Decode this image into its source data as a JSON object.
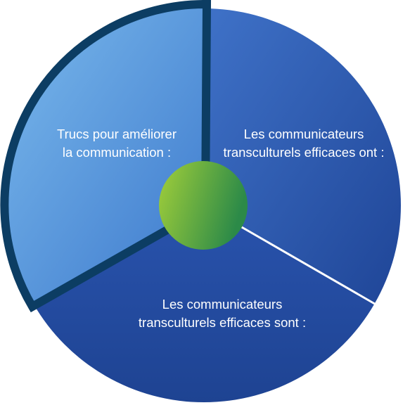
{
  "segments": {
    "left": {
      "line1": "Trucs pour améliorer",
      "line2": "la communication :",
      "highlighted": true
    },
    "right": {
      "line1": "Les communicateurs",
      "line2": "transculturels efficaces ont :"
    },
    "bottom": {
      "line1": "Les communicateurs",
      "line2": "transculturels efficaces sont :"
    }
  },
  "colors": {
    "segment_light": "#6aaee6",
    "segment_mid": "#3b6fc4",
    "segment_dark": "#2148a0",
    "highlight_border": "#0c3d63",
    "hub_light": "#9ccc3c",
    "hub_dark": "#2e8c46",
    "divider": "#ffffff"
  },
  "icons": {
    "hub": "green-hub-circle"
  }
}
